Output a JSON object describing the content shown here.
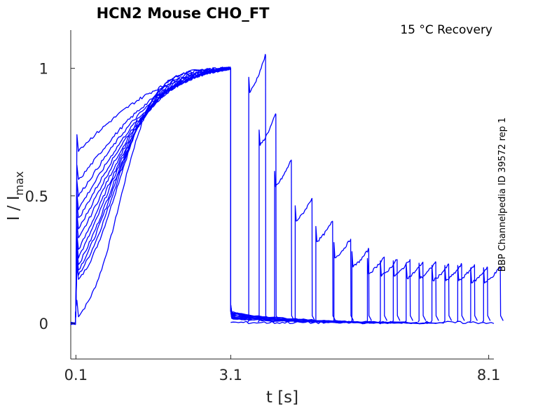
{
  "chart_data": {
    "type": "line",
    "title": "HCN2  Mouse  CHO_FT",
    "condition_label": "15 °C  Recovery",
    "side_label": "BBP Channelpedia ID 39572 rep 1",
    "xlabel": "t [s]",
    "ylabel": {
      "main": "I / I",
      "subscript": "max"
    },
    "xlim": [
      0.0,
      8.2
    ],
    "ylim": [
      -0.14,
      1.15
    ],
    "x_ticks": [
      {
        "value": 0.1,
        "label": "0.1"
      },
      {
        "value": 3.1,
        "label": "3.1"
      },
      {
        "value": 8.1,
        "label": "8.1"
      }
    ],
    "y_ticks": [
      {
        "value": 0,
        "label": "0"
      },
      {
        "value": 0.5,
        "label": "0.5"
      },
      {
        "value": 1,
        "label": "1"
      }
    ],
    "grid": false,
    "series_color": "#0000ff",
    "protocol": {
      "activation_start": 0.1,
      "activation_end": 3.1,
      "recovery_end": 8.1,
      "test_pulse_starts": [
        3.45,
        3.65,
        3.95,
        4.35,
        4.75,
        5.1,
        5.45,
        5.75,
        6.0,
        6.25,
        6.5,
        6.75,
        7.0,
        7.25,
        7.5,
        7.75,
        8.0
      ],
      "initial_levels": [
        0.03,
        0.17,
        0.19,
        0.21,
        0.23,
        0.26,
        0.29,
        0.33,
        0.37,
        0.41,
        0.45,
        0.5,
        0.56,
        0.68
      ],
      "recovery_peaks": [
        1.05,
        0.82,
        0.64,
        0.49,
        0.4,
        0.33,
        0.29,
        0.26,
        0.25,
        0.25,
        0.24,
        0.24,
        0.23,
        0.23,
        0.23,
        0.22,
        0.22
      ]
    }
  }
}
